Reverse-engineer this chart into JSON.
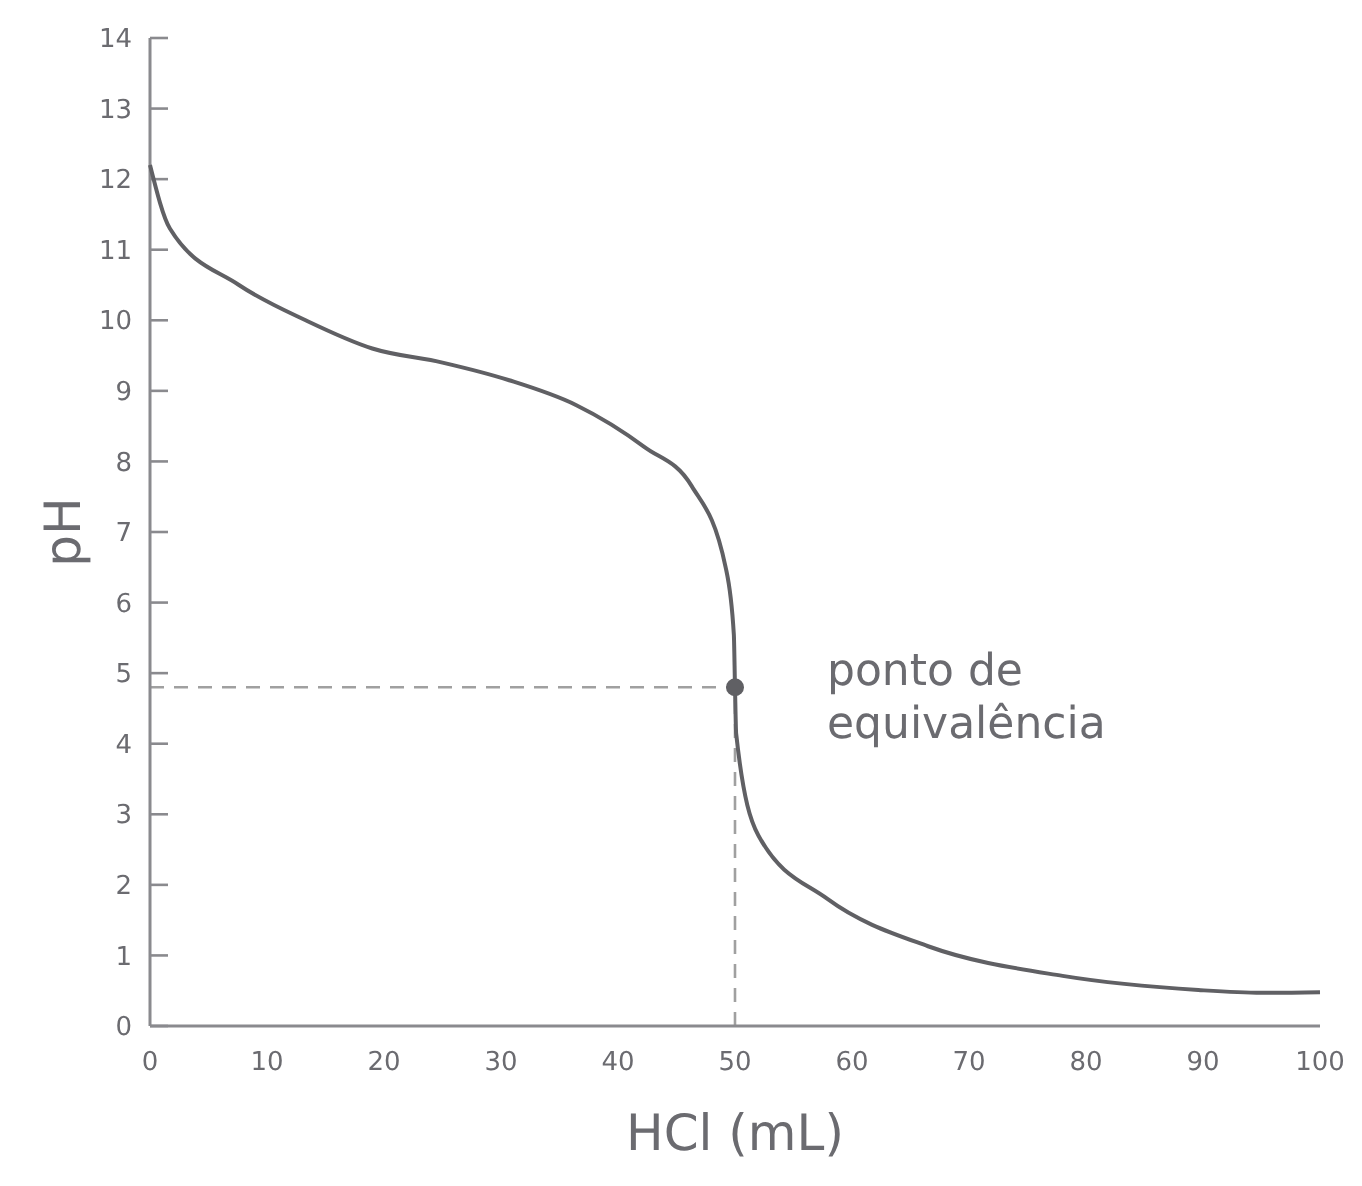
{
  "chart_data": {
    "type": "line",
    "xlabel": "HCl (mL)",
    "ylabel": "pH",
    "xlim": [
      0,
      100
    ],
    "xticks": [
      0,
      10,
      20,
      30,
      40,
      50,
      60,
      70,
      80,
      90,
      100
    ],
    "ylim": [
      0,
      14
    ],
    "yticks": [
      0,
      1,
      2,
      3,
      4,
      5,
      6,
      7,
      8,
      9,
      10,
      11,
      12,
      13,
      14
    ],
    "grid": false,
    "marker": "none",
    "line_style": "solid",
    "series": [
      {
        "color": "#606064",
        "x": [
          0,
          1.7,
          7.6,
          13.3,
          19,
          25,
          30.7,
          36.4,
          42.3,
          46.3,
          49.2,
          49.9,
          50,
          50.1,
          52,
          57.9,
          66.5,
          78,
          89.6,
          95,
          100
        ],
        "values": [
          12.2,
          11.3,
          10.5,
          10.0,
          9.6,
          9.4,
          9.15,
          8.8,
          8.2,
          7.65,
          6.5,
          5.55,
          4.8,
          4.14,
          2.7,
          1.8,
          1.13,
          0.71,
          0.51,
          0.47,
          0.48
        ]
      },
      {
        "type": "scatter",
        "marker": "circle",
        "color": "#606064",
        "x": [
          50
        ],
        "values": [
          4.8
        ]
      }
    ],
    "ref_lines": [
      {
        "axis": "x",
        "value": 50,
        "color": "#a0a0a0",
        "line_style": "dashed"
      },
      {
        "axis": "y",
        "value": 4.8,
        "color": "#a0a0a0",
        "line_style": "dashed"
      }
    ],
    "annotations": [
      {
        "text": "ponto de equivalência",
        "x": 50,
        "y": 4.8
      }
    ]
  }
}
